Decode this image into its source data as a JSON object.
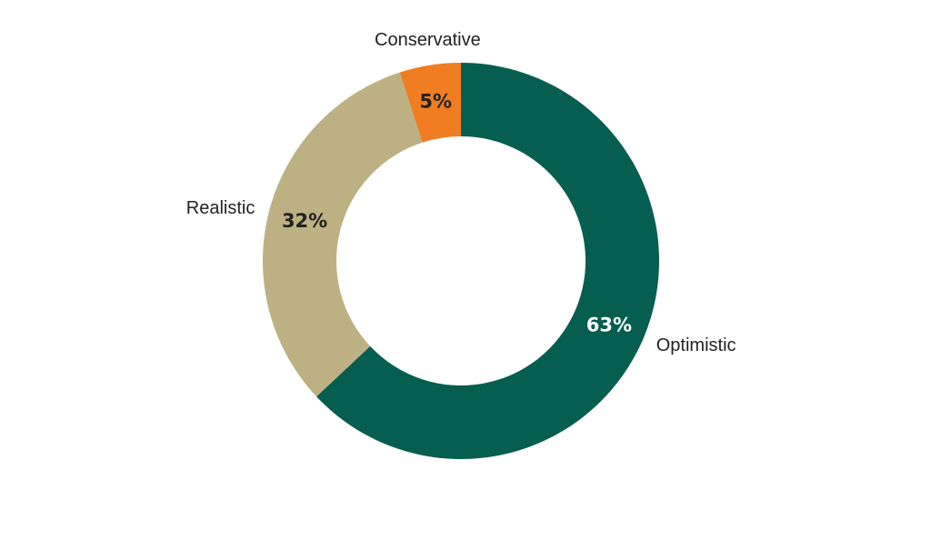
{
  "chart_data": {
    "type": "pie",
    "variant": "donut",
    "title": "",
    "slices": [
      {
        "name": "Optimistic",
        "value": 63,
        "label": "63%",
        "color": "#065E50",
        "label_color": "#ffffff"
      },
      {
        "name": "Realistic",
        "value": 32,
        "label": "32%",
        "color": "#BDB184",
        "label_color": "#222222"
      },
      {
        "name": "Conservative",
        "value": 5,
        "label": "5%",
        "color": "#F07D22",
        "label_color": "#222222"
      }
    ],
    "start": "top",
    "direction": "clockwise",
    "legend": "none"
  }
}
